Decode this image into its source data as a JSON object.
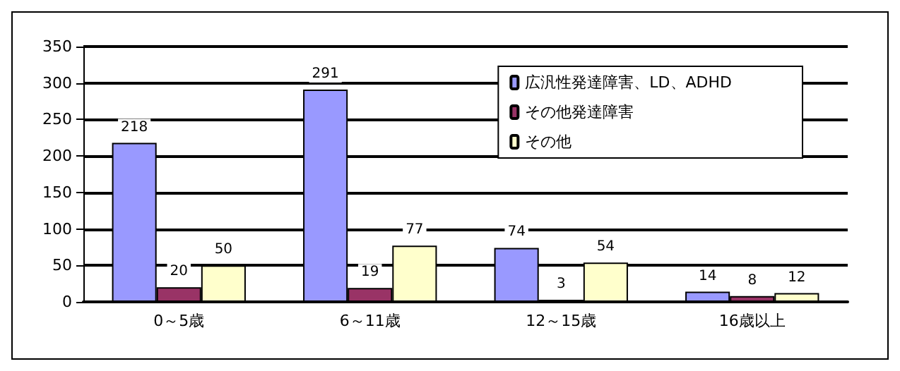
{
  "chart_data": {
    "type": "bar",
    "categories": [
      "0～5歳",
      "6～11歳",
      "12～15歳",
      "16歳以上"
    ],
    "series": [
      {
        "name": "広汎性発達障害、LD、ADHD",
        "color": "#9999ff",
        "values": [
          218,
          291,
          74,
          14
        ]
      },
      {
        "name": "その他発達障害",
        "color": "#993366",
        "values": [
          20,
          19,
          3,
          8
        ]
      },
      {
        "name": "その他",
        "color": "#ffffcc",
        "values": [
          50,
          77,
          54,
          12
        ]
      }
    ],
    "ylim": [
      0,
      350
    ],
    "yticks": [
      0,
      50,
      100,
      150,
      200,
      250,
      300,
      350
    ],
    "grid": "y",
    "legend": "top right",
    "data_labels": true
  }
}
